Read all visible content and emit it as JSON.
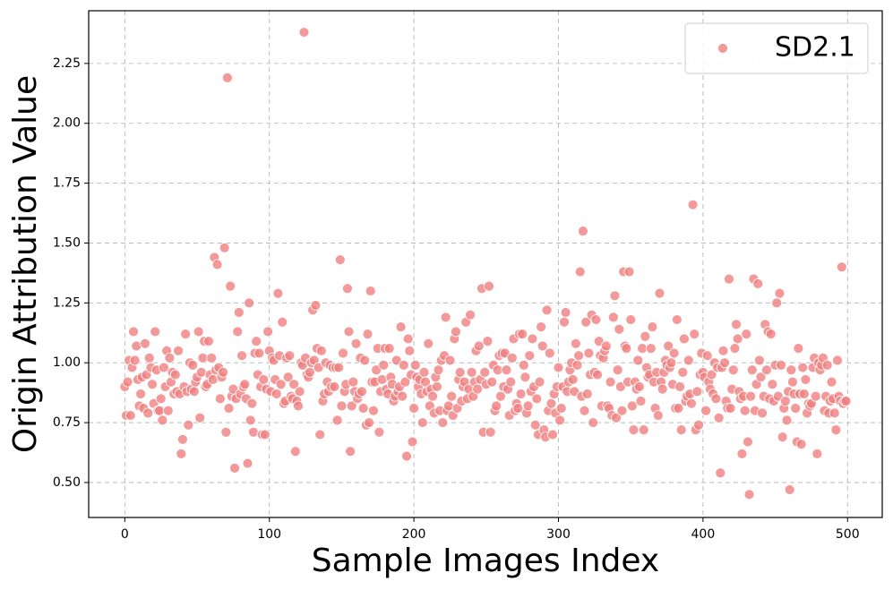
{
  "chart_data": {
    "type": "scatter",
    "xlabel": "Sample Images Index",
    "ylabel": "Origin Attribution Value",
    "legend": "upper right",
    "grid": true,
    "xlim": [
      -25,
      524
    ],
    "ylim": [
      0.354,
      2.47
    ],
    "xticks": [
      0,
      100,
      200,
      300,
      400,
      500
    ],
    "yticks": [
      {
        "value": 0.5,
        "label": "0.50"
      },
      0.75,
      {
        "value": 1,
        "label": "1.00"
      },
      1.25,
      {
        "value": 1.5,
        "label": "1.50"
      },
      1.75,
      {
        "value": 2,
        "label": "2.00"
      },
      2.25
    ],
    "series": [
      {
        "name": "SD2.1",
        "color": "#f08080",
        "x": [
          0,
          1,
          2,
          3,
          4,
          5,
          6,
          7,
          8,
          9,
          10,
          11,
          12,
          13,
          14,
          15,
          16,
          17,
          18,
          19,
          20,
          21,
          22,
          23,
          24,
          25,
          26,
          27,
          28,
          29,
          30,
          31,
          32,
          33,
          34,
          35,
          36,
          37,
          38,
          39,
          40,
          41,
          42,
          43,
          44,
          45,
          46,
          47,
          48,
          49,
          50,
          51,
          52,
          53,
          54,
          55,
          56,
          57,
          58,
          59,
          60,
          61,
          62,
          63,
          64,
          65,
          66,
          67,
          68,
          69,
          70,
          71,
          72,
          73,
          74,
          75,
          76,
          77,
          78,
          79,
          80,
          81,
          82,
          83,
          84,
          85,
          86,
          87,
          88,
          89,
          90,
          91,
          92,
          93,
          94,
          95,
          96,
          97,
          98,
          99,
          100,
          101,
          102,
          103,
          104,
          105,
          106,
          107,
          108,
          109,
          110,
          111,
          112,
          113,
          114,
          115,
          116,
          117,
          118,
          119,
          120,
          121,
          122,
          123,
          124,
          125,
          126,
          127,
          128,
          129,
          130,
          131,
          132,
          133,
          134,
          135,
          136,
          137,
          138,
          139,
          140,
          141,
          142,
          143,
          144,
          145,
          146,
          147,
          148,
          149,
          150,
          151,
          152,
          153,
          154,
          155,
          156,
          157,
          158,
          159,
          160,
          161,
          162,
          163,
          164,
          165,
          166,
          167,
          168,
          169,
          170,
          171,
          172,
          173,
          174,
          175,
          176,
          177,
          178,
          179,
          180,
          181,
          182,
          183,
          184,
          185,
          186,
          187,
          188,
          189,
          190,
          191,
          192,
          193,
          194,
          195,
          196,
          197,
          198,
          199,
          200,
          201,
          202,
          203,
          204,
          205,
          206,
          207,
          208,
          209,
          210,
          211,
          212,
          213,
          214,
          215,
          216,
          217,
          218,
          219,
          220,
          221,
          222,
          223,
          224,
          225,
          226,
          227,
          228,
          229,
          230,
          231,
          232,
          233,
          234,
          235,
          236,
          237,
          238,
          239,
          240,
          241,
          242,
          243,
          244,
          245,
          246,
          247,
          248,
          249,
          250,
          251,
          252,
          253,
          254,
          255,
          256,
          257,
          258,
          259,
          260,
          261,
          262,
          263,
          264,
          265,
          266,
          267,
          268,
          269,
          270,
          271,
          272,
          273,
          274,
          275,
          276,
          277,
          278,
          279,
          280,
          281,
          282,
          283,
          284,
          285,
          286,
          287,
          288,
          289,
          290,
          291,
          292,
          293,
          294,
          295,
          296,
          297,
          298,
          299,
          300,
          301,
          302,
          303,
          304,
          305,
          306,
          307,
          308,
          309,
          310,
          311,
          312,
          313,
          314,
          315,
          316,
          317,
          318,
          319,
          320,
          321,
          322,
          323,
          324,
          325,
          326,
          327,
          328,
          329,
          330,
          331,
          332,
          333,
          334,
          335,
          336,
          337,
          338,
          339,
          340,
          341,
          342,
          343,
          344,
          345,
          346,
          347,
          348,
          349,
          350,
          351,
          352,
          353,
          354,
          355,
          356,
          357,
          358,
          359,
          360,
          361,
          362,
          363,
          364,
          365,
          366,
          367,
          368,
          369,
          370,
          371,
          372,
          373,
          374,
          375,
          376,
          377,
          378,
          379,
          380,
          381,
          382,
          383,
          384,
          385,
          386,
          387,
          388,
          389,
          390,
          391,
          392,
          393,
          394,
          395,
          396,
          397,
          398,
          399,
          400,
          401,
          402,
          403,
          404,
          405,
          406,
          407,
          408,
          409,
          410,
          411,
          412,
          413,
          414,
          415,
          416,
          417,
          418,
          419,
          420,
          421,
          422,
          423,
          424,
          425,
          426,
          427,
          428,
          429,
          430,
          431,
          432,
          433,
          434,
          435,
          436,
          437,
          438,
          439,
          440,
          441,
          442,
          443,
          444,
          445,
          446,
          447,
          448,
          449,
          450,
          451,
          452,
          453,
          454,
          455,
          456,
          457,
          458,
          459,
          460,
          461,
          462,
          463,
          464,
          465,
          466,
          467,
          468,
          469,
          470,
          471,
          472,
          473,
          474,
          475,
          476,
          477,
          478,
          479,
          480,
          481,
          482,
          483,
          484,
          485,
          486,
          487,
          488,
          489,
          490,
          491,
          492,
          493,
          494,
          495,
          496,
          497,
          498,
          499
        ],
        "values": [
          0.9,
          0.78,
          0.92,
          1.01,
          0.78,
          0.98,
          1.13,
          1.01,
          1.07,
          0.93,
          0.82,
          0.87,
          0.94,
          0.81,
          1.08,
          0.95,
          0.79,
          1.02,
          0.98,
          0.91,
          0.83,
          1.13,
          0.97,
          0.8,
          0.8,
          0.85,
          0.76,
          0.98,
          0.9,
          1.05,
          0.8,
          1.02,
          0.92,
          0.96,
          0.87,
          0.95,
          0.88,
          1.05,
          0.87,
          0.62,
          0.68,
          0.9,
          1.12,
          0.88,
          0.74,
          1.0,
          0.89,
          0.99,
          0.88,
          0.92,
          0.94,
          1.13,
          0.77,
          0.96,
          1.02,
          1.09,
          0.9,
          0.91,
          1.09,
          0.95,
          1.02,
          0.93,
          1.44,
          0.97,
          1.41,
          0.98,
          0.85,
          0.94,
          0.96,
          1.48,
          0.71,
          2.19,
          0.81,
          1.32,
          0.86,
          0.89,
          0.56,
          0.85,
          1.13,
          1.21,
          0.87,
          1.03,
          0.9,
          0.91,
          0.85,
          0.58,
          1.25,
          0.76,
          0.83,
          0.71,
          1.04,
          1.09,
          0.95,
          1.04,
          0.9,
          0.7,
          0.93,
          0.7,
          0.89,
          1.13,
          1.05,
          0.88,
          1.02,
          1.01,
          0.93,
          0.87,
          1.29,
          1.03,
          0.91,
          1.17,
          0.83,
          0.84,
          1.02,
          0.94,
          1.03,
          0.86,
          0.85,
          0.91,
          0.63,
          0.84,
          0.82,
          0.88,
          1.0,
          0.99,
          2.38,
          1.02,
          0.95,
          0.94,
          0.96,
          1.0,
          1.22,
          1.01,
          1.24,
          1.06,
          0.98,
          0.7,
          1.05,
          0.84,
          0.87,
          1.0,
          0.92,
          0.88,
          0.99,
          0.9,
          0.98,
          0.9,
          0.98,
          0.76,
          0.98,
          1.43,
          0.82,
          1.04,
          0.88,
          0.91,
          1.31,
          1.13,
          0.63,
          0.82,
          0.92,
          0.88,
          1.08,
          0.85,
          0.87,
          1.02,
          0.88,
          0.81,
          1.01,
          0.74,
          1.12,
          0.75,
          1.3,
          0.92,
          0.8,
          0.92,
          0.97,
          1.06,
          0.71,
          0.88,
          0.93,
          0.99,
          1.06,
          0.89,
          0.87,
          1.06,
          0.94,
          0.91,
          0.84,
          0.86,
          1.01,
          0.88,
          0.9,
          1.15,
          0.86,
          0.99,
          0.92,
          0.61,
          1.1,
          1.05,
          0.95,
          0.67,
          0.81,
          0.99,
          0.94,
          0.9,
          0.93,
          0.87,
          0.75,
          0.96,
          0.92,
          0.88,
          1.08,
          0.82,
          0.89,
          0.86,
          0.79,
          0.94,
          0.9,
          0.97,
          0.8,
          1.01,
          0.75,
          1.03,
          1.19,
          0.8,
          0.82,
          1.01,
          0.86,
          0.78,
          1.1,
          1.13,
          0.81,
          0.93,
          0.96,
          0.84,
          0.9,
          0.92,
          1.17,
          0.85,
          0.89,
          1.2,
          0.96,
          0.86,
          0.92,
          1.05,
          0.89,
          1.07,
          0.93,
          1.31,
          0.71,
          0.96,
          0.91,
          1.09,
          1.32,
          0.71,
          0.92,
          0.99,
          0.8,
          0.82,
          0.97,
          1.03,
          0.86,
          1.04,
          0.9,
          1.04,
          0.97,
          0.89,
          0.78,
          0.92,
          1.02,
          1.1,
          0.8,
          0.83,
          0.81,
          1.12,
          0.87,
          1.12,
          0.99,
          0.94,
          0.79,
          0.82,
          1.03,
          0.88,
          1.1,
          0.9,
          0.74,
          0.85,
          0.7,
          0.92,
          1.15,
          1.07,
          0.72,
          0.69,
          1.22,
          0.8,
          1.04,
          0.83,
          0.7,
          0.87,
          0.79,
          0.9,
          0.98,
          0.76,
          0.81,
          0.9,
          1.17,
          1.21,
          0.88,
          0.92,
          0.97,
          1.0,
          0.93,
          0.88,
          1.08,
          0.99,
          1.03,
          1.38,
          0.86,
          1.55,
          0.8,
          1.17,
          0.87,
          1.04,
          0.95,
          1.2,
          0.75,
          0.96,
          1.18,
          0.95,
          1.09,
          1.03,
          0.82,
          1.02,
          1.05,
          1.07,
          0.82,
          0.81,
          0.92,
          0.78,
          1.19,
          1.28,
          0.77,
          0.97,
          1.14,
          0.9,
          0.8,
          1.38,
          1.07,
          1.06,
          0.92,
          1.38,
          1.18,
          0.82,
          0.72,
          0.92,
          0.89,
          1.01,
          0.9,
          0.84,
          1.06,
          0.72,
          1.11,
          0.98,
          0.94,
          0.95,
          1.06,
          1.15,
          0.92,
          0.81,
          0.96,
          0.78,
          1.29,
          0.92,
          0.89,
          0.96,
          1.01,
          0.99,
          1.07,
          0.98,
          1.0,
          0.91,
          1.04,
          0.81,
          1.18,
          0.81,
          0.9,
          0.72,
          0.96,
          1.1,
          0.84,
          0.86,
          1.01,
          0.87,
          0.83,
          1.66,
          1.12,
          0.72,
          0.88,
          0.74,
          0.95,
          1.04,
          0.96,
          0.94,
          0.8,
          1.03,
          0.92,
          0.89,
          0.95,
          0.87,
          1.0,
          0.85,
          0.98,
          0.77,
          0.54,
          0.98,
          1.05,
          1.0,
          0.84,
          0.81,
          1.35,
          0.81,
          0.89,
          0.97,
          1.06,
          1.16,
          1.1,
          0.88,
          0.85,
          0.62,
          0.86,
          0.8,
          1.12,
          0.67,
          0.45,
          0.86,
          0.97,
          1.35,
          0.8,
          0.91,
          1.33,
          1.01,
          0.94,
          0.79,
          0.86,
          1.16,
          0.97,
          1.13,
          0.85,
          1.12,
          0.91,
          0.84,
          0.99,
          1.25,
          0.86,
          1.29,
          0.99,
          0.69,
          0.81,
          0.84,
          0.76,
          0.88,
          0.47,
          0.97,
          0.92,
          0.87,
          0.81,
          0.67,
          1.06,
          0.87,
          0.66,
          0.98,
          0.87,
          0.93,
          0.79,
          0.83,
          0.82,
          0.83,
          0.98,
          1.02,
          0.86,
          0.62,
          1.0,
          0.97,
          0.99,
          1.02,
          0.8,
          0.86,
          0.99,
          0.79,
          0.84,
          0.92,
          0.85,
          0.79,
          0.72,
          1.01,
          0.86,
          0.84,
          1.4,
          0.83,
          0.84,
          0.84
        ]
      }
    ]
  }
}
